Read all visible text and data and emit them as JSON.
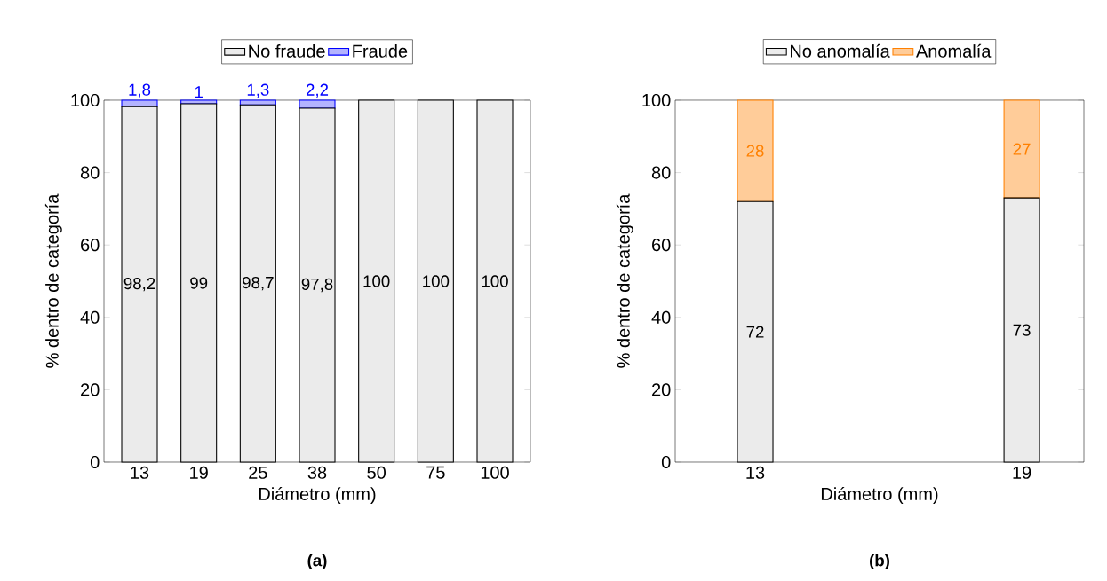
{
  "chart_data": [
    {
      "type": "bar",
      "stacked": true,
      "categories": [
        "13",
        "19",
        "25",
        "38",
        "50",
        "75",
        "100"
      ],
      "xlabel": "Diámetro (mm)",
      "ylabel": "% dentro de categoría",
      "ylim": [
        0,
        100
      ],
      "yticks": [
        0,
        20,
        40,
        60,
        80,
        100
      ],
      "legend": "top",
      "annotations": [
        "(a)"
      ],
      "series": [
        {
          "name": "No fraude",
          "color": "#ebebeb",
          "values": [
            98.2,
            99,
            98.7,
            97.8,
            100,
            100,
            100
          ],
          "value_labels": [
            "98,2",
            "99",
            "98,7",
            "97,8",
            "100",
            "100",
            "100"
          ]
        },
        {
          "name": "Fraude",
          "color": "#b3b3ff",
          "values": [
            1.8,
            1,
            1.3,
            2.2,
            null,
            null,
            null
          ],
          "value_labels": [
            "1,8",
            "1",
            "1,3",
            "2,2",
            null,
            null,
            null
          ]
        }
      ]
    },
    {
      "type": "bar",
      "stacked": true,
      "categories": [
        "13",
        "19"
      ],
      "xlabel": "Diámetro (mm)",
      "ylabel": "% dentro de categoría",
      "ylim": [
        0,
        100
      ],
      "yticks": [
        0,
        20,
        40,
        60,
        80,
        100
      ],
      "legend": "top",
      "annotations": [
        "(b)"
      ],
      "series": [
        {
          "name": "No anomalía",
          "color": "#ebebeb",
          "values": [
            72,
            73
          ],
          "value_labels": [
            "72",
            "73"
          ]
        },
        {
          "name": "Anomalía",
          "color": "#ffcc99",
          "values": [
            28,
            27
          ],
          "value_labels": [
            "28",
            "27"
          ]
        }
      ]
    }
  ]
}
